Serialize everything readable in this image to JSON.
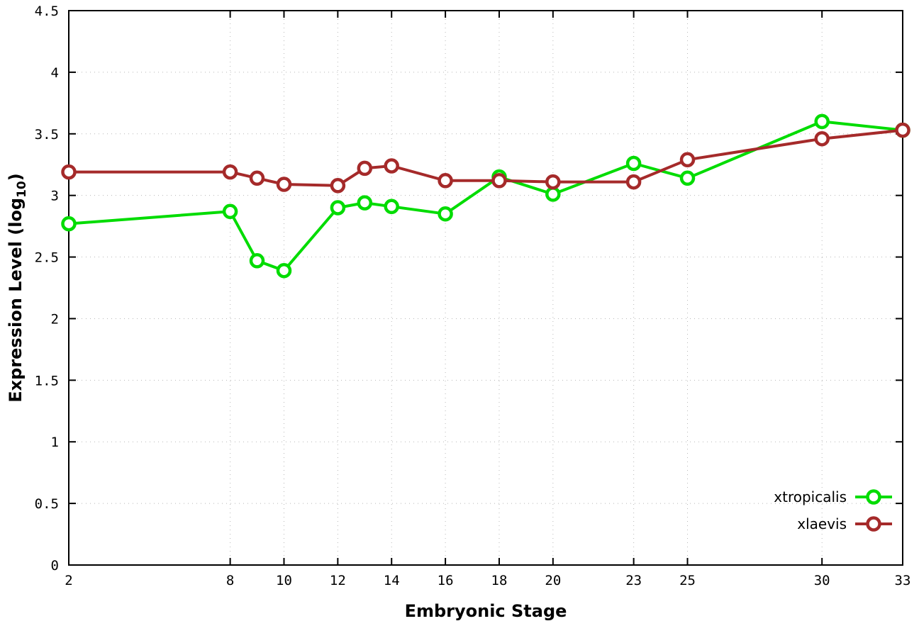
{
  "chart_data": {
    "type": "line",
    "title": "",
    "xlabel": "Embryonic Stage",
    "ylabel": "Expression Level (log10)",
    "ylabel_prefix": "Expression Level (log",
    "ylabel_sub": "10",
    "ylabel_suffix": ")",
    "xlim": [
      2,
      33
    ],
    "ylim": [
      0,
      4.5
    ],
    "xticks": [
      2,
      8,
      10,
      12,
      14,
      16,
      18,
      20,
      23,
      25,
      30,
      33
    ],
    "yticks": [
      0,
      0.5,
      1,
      1.5,
      2,
      2.5,
      3,
      3.5,
      4,
      4.5
    ],
    "grid": true,
    "legend_position": "bottom-right",
    "background_color": "#ffffff",
    "x": [
      2,
      8,
      9,
      10,
      12,
      13,
      14,
      16,
      18,
      20,
      23,
      25,
      30,
      33
    ],
    "series": [
      {
        "name": "xtropicalis",
        "color": "#00dc00",
        "values": [
          2.77,
          2.87,
          2.47,
          2.39,
          2.9,
          2.94,
          2.91,
          2.85,
          3.15,
          3.01,
          3.26,
          3.14,
          3.6,
          3.53
        ]
      },
      {
        "name": "xlaevis",
        "color": "#a52a2a",
        "values": [
          3.19,
          3.19,
          3.14,
          3.09,
          3.08,
          3.22,
          3.24,
          3.12,
          3.12,
          3.11,
          3.11,
          3.29,
          3.46,
          3.53
        ]
      }
    ]
  }
}
